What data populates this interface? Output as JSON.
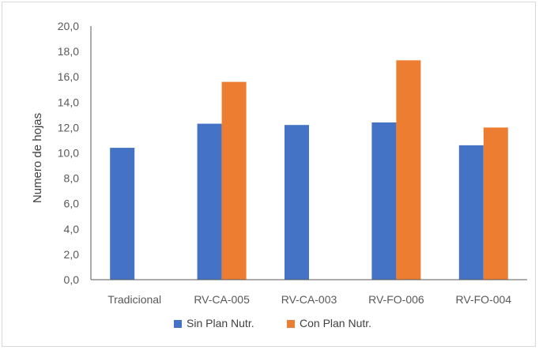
{
  "chart_data": {
    "type": "bar",
    "title": "",
    "xlabel": "",
    "ylabel": "Numero de hojas",
    "ylim": [
      0,
      20
    ],
    "ytick_step": 2,
    "ytick_labels": [
      "0,0",
      "2,0",
      "4,0",
      "6,0",
      "8,0",
      "10,0",
      "12,0",
      "14,0",
      "16,0",
      "18,0",
      "20,0"
    ],
    "categories": [
      "Tradicional",
      "RV-CA-005",
      "RV-CA-003",
      "RV-FO-006",
      "RV-FO-004"
    ],
    "series": [
      {
        "name": "Sin Plan Nutr.",
        "color": "#4472C4",
        "values": [
          10.4,
          12.3,
          12.2,
          12.4,
          10.6
        ]
      },
      {
        "name": "Con Plan Nutr.",
        "color": "#ED7D31",
        "values": [
          null,
          15.6,
          null,
          17.3,
          12.0
        ]
      }
    ],
    "grid": false,
    "legend_position": "bottom"
  }
}
